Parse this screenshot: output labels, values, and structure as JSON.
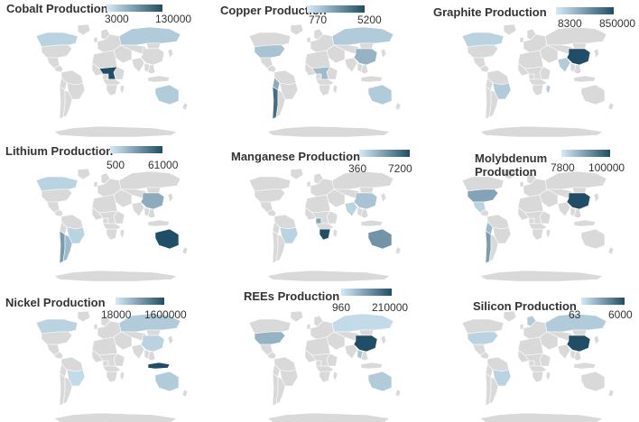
{
  "colors": {
    "land": "#d9d9d9",
    "border": "#ffffff",
    "low": "#d5eaf7",
    "high": "#1f4e66"
  },
  "panels": [
    {
      "title": "Cobalt Production",
      "legend_min": "3000",
      "legend_max": "130000",
      "highlights": [
        {
          "region": "central-africa",
          "level": 1.0
        },
        {
          "region": "australia",
          "level": 0.2
        },
        {
          "region": "russia",
          "level": 0.2
        },
        {
          "region": "canada",
          "level": 0.15
        }
      ]
    },
    {
      "title": "Copper Production",
      "legend_min": "770",
      "legend_max": "5200",
      "highlights": [
        {
          "region": "chile",
          "level": 0.8
        },
        {
          "region": "peru",
          "level": 0.4
        },
        {
          "region": "usa",
          "level": 0.25
        },
        {
          "region": "china",
          "level": 0.35
        },
        {
          "region": "russia",
          "level": 0.2
        },
        {
          "region": "australia",
          "level": 0.2
        },
        {
          "region": "central-africa",
          "level": 0.3
        }
      ]
    },
    {
      "title": "Graphite Production",
      "legend_min": "8300",
      "legend_max": "850000",
      "highlights": [
        {
          "region": "china",
          "level": 1.0
        },
        {
          "region": "brazil",
          "level": 0.2
        },
        {
          "region": "canada",
          "level": 0.15
        },
        {
          "region": "india",
          "level": 0.2
        },
        {
          "region": "madagascar",
          "level": 0.2
        }
      ]
    },
    {
      "title": "Lithium Production",
      "legend_min": "500",
      "legend_max": "61000",
      "highlights": [
        {
          "region": "australia",
          "level": 1.0
        },
        {
          "region": "chile",
          "level": 0.5
        },
        {
          "region": "argentina",
          "level": 0.3
        },
        {
          "region": "china",
          "level": 0.4
        },
        {
          "region": "canada",
          "level": 0.15
        },
        {
          "region": "brazil",
          "level": 0.15
        }
      ]
    },
    {
      "title": "Manganese Production",
      "legend_min": "360",
      "legend_max": "7200",
      "highlights": [
        {
          "region": "south-africa",
          "level": 1.0
        },
        {
          "region": "australia",
          "level": 0.55
        },
        {
          "region": "gabon",
          "level": 0.45
        },
        {
          "region": "china",
          "level": 0.25
        },
        {
          "region": "brazil",
          "level": 0.15
        },
        {
          "region": "india",
          "level": 0.15
        }
      ]
    },
    {
      "title": "Molybdenum Production",
      "legend_min": "7800",
      "legend_max": "100000",
      "highlights": [
        {
          "region": "china",
          "level": 1.0
        },
        {
          "region": "usa",
          "level": 0.45
        },
        {
          "region": "chile",
          "level": 0.5
        },
        {
          "region": "peru",
          "level": 0.3
        },
        {
          "region": "mexico",
          "level": 0.15
        }
      ]
    },
    {
      "title": "Nickel Production",
      "legend_min": "18000",
      "legend_max": "1600000",
      "highlights": [
        {
          "region": "indonesia",
          "level": 1.0
        },
        {
          "region": "russia",
          "level": 0.2
        },
        {
          "region": "canada",
          "level": 0.15
        },
        {
          "region": "australia",
          "level": 0.2
        },
        {
          "region": "china",
          "level": 0.15
        },
        {
          "region": "brazil",
          "level": 0.1
        }
      ]
    },
    {
      "title": "REEs Production",
      "legend_min": "960",
      "legend_max": "210000",
      "highlights": [
        {
          "region": "china",
          "level": 1.0
        },
        {
          "region": "usa",
          "level": 0.35
        },
        {
          "region": "australia",
          "level": 0.2
        },
        {
          "region": "myanmar",
          "level": 0.25
        },
        {
          "region": "russia",
          "level": 0.1
        }
      ]
    },
    {
      "title": "Silicon Production",
      "legend_min": "63",
      "legend_max": "6000",
      "highlights": [
        {
          "region": "china",
          "level": 1.0
        },
        {
          "region": "russia",
          "level": 0.2
        },
        {
          "region": "brazil",
          "level": 0.15
        },
        {
          "region": "usa",
          "level": 0.15
        },
        {
          "region": "norway",
          "level": 0.2
        }
      ]
    }
  ]
}
